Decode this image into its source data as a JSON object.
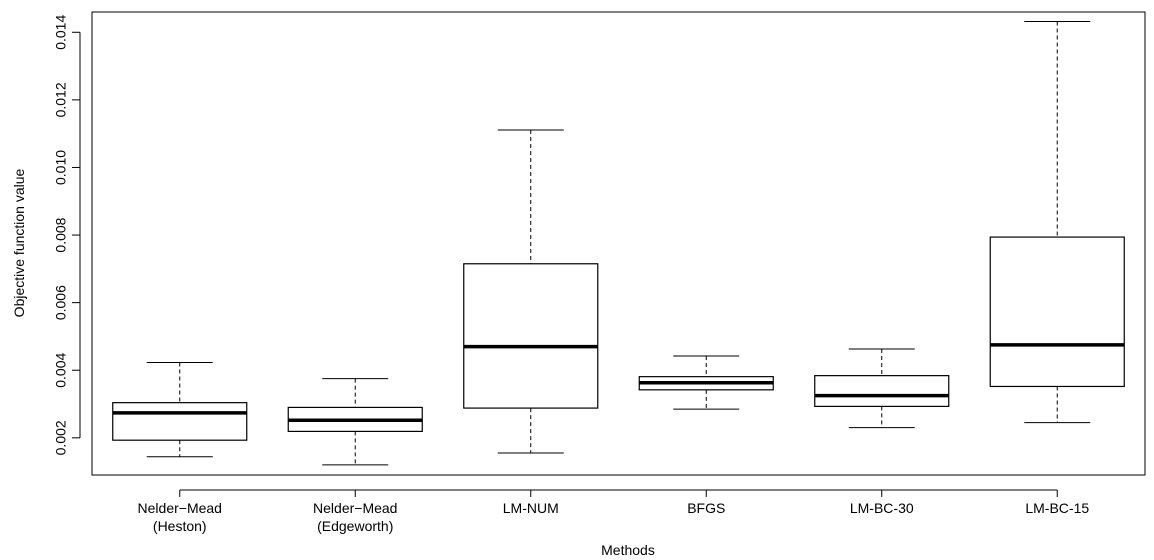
{
  "chart_data": {
    "type": "boxplot",
    "title": "",
    "xlabel": "Methods",
    "ylabel": "Objective function value",
    "ylim": [
      0.0009,
      0.0146
    ],
    "yticks": [
      "0.002",
      "0.004",
      "0.006",
      "0.008",
      "0.010",
      "0.012",
      "0.014"
    ],
    "ytick_values": [
      0.002,
      0.004,
      0.006,
      0.008,
      0.01,
      0.012,
      0.014
    ],
    "categories": [
      [
        "Nelder−Mead",
        "(Heston)"
      ],
      [
        "Nelder−Mead",
        "(Edgeworth)"
      ],
      [
        "LM-NUM"
      ],
      [
        "BFGS"
      ],
      [
        "LM-BC-30"
      ],
      [
        "LM-BC-15"
      ]
    ],
    "boxes": [
      {
        "whisker_low": 0.00144,
        "q1": 0.00193,
        "median": 0.00274,
        "q3": 0.00304,
        "whisker_high": 0.00423
      },
      {
        "whisker_low": 0.0012,
        "q1": 0.00219,
        "median": 0.00252,
        "q3": 0.0029,
        "whisker_high": 0.00375
      },
      {
        "whisker_low": 0.00155,
        "q1": 0.00288,
        "median": 0.0047,
        "q3": 0.00715,
        "whisker_high": 0.01111
      },
      {
        "whisker_low": 0.00285,
        "q1": 0.00342,
        "median": 0.00363,
        "q3": 0.00381,
        "whisker_high": 0.00442
      },
      {
        "whisker_low": 0.0023,
        "q1": 0.00293,
        "median": 0.00325,
        "q3": 0.00384,
        "whisker_high": 0.00463
      },
      {
        "whisker_low": 0.00245,
        "q1": 0.00352,
        "median": 0.00475,
        "q3": 0.00794,
        "whisker_high": 0.01432
      }
    ],
    "grid": false,
    "legend": "none"
  }
}
